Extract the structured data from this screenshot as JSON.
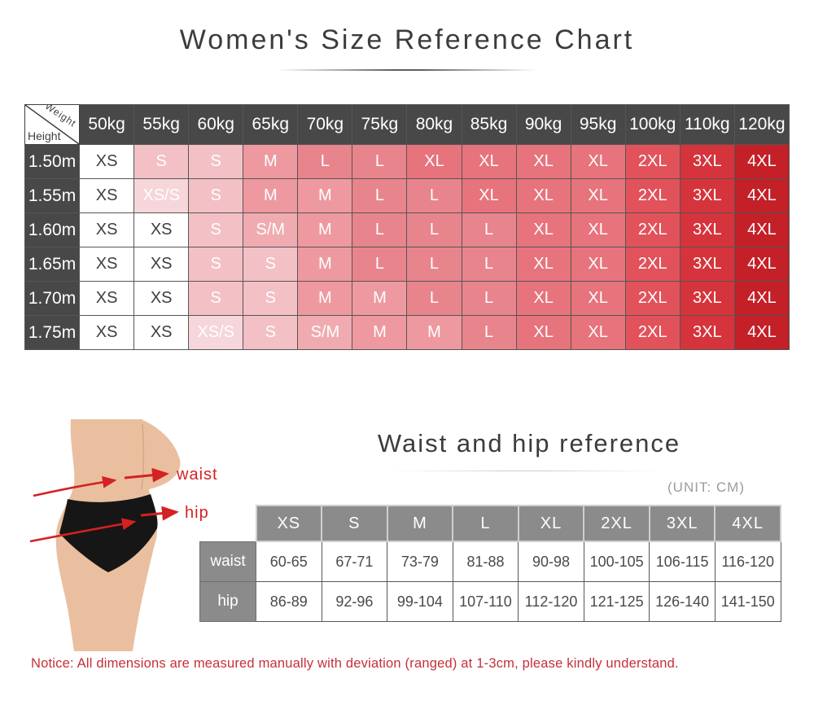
{
  "page": {
    "title": "Women's Size Reference Chart",
    "notice": "Notice: All dimensions are measured manually with deviation (ranged) at 1-3cm, please kindly understand."
  },
  "size_chart": {
    "corner": {
      "top_label": "Weight",
      "bottom_label": "Height"
    },
    "weight_headers": [
      "50kg",
      "55kg",
      "60kg",
      "65kg",
      "70kg",
      "75kg",
      "80kg",
      "85kg",
      "90kg",
      "95kg",
      "100kg",
      "110kg",
      "120kg"
    ],
    "rows": [
      {
        "height": "1.50m",
        "sizes": [
          "XS",
          "S",
          "S",
          "M",
          "L",
          "L",
          "XL",
          "XL",
          "XL",
          "XL",
          "2XL",
          "3XL",
          "4XL"
        ]
      },
      {
        "height": "1.55m",
        "sizes": [
          "XS",
          "XS/S",
          "S",
          "M",
          "M",
          "L",
          "L",
          "XL",
          "XL",
          "XL",
          "2XL",
          "3XL",
          "4XL"
        ]
      },
      {
        "height": "1.60m",
        "sizes": [
          "XS",
          "XS",
          "S",
          "S/M",
          "M",
          "L",
          "L",
          "L",
          "XL",
          "XL",
          "2XL",
          "3XL",
          "4XL"
        ]
      },
      {
        "height": "1.65m",
        "sizes": [
          "XS",
          "XS",
          "S",
          "S",
          "M",
          "L",
          "L",
          "L",
          "XL",
          "XL",
          "2XL",
          "3XL",
          "4XL"
        ]
      },
      {
        "height": "1.70m",
        "sizes": [
          "XS",
          "XS",
          "S",
          "S",
          "M",
          "M",
          "L",
          "L",
          "XL",
          "XL",
          "2XL",
          "3XL",
          "4XL"
        ]
      },
      {
        "height": "1.75m",
        "sizes": [
          "XS",
          "XS",
          "XS/S",
          "S",
          "S/M",
          "M",
          "M",
          "L",
          "XL",
          "XL",
          "2XL",
          "3XL",
          "4XL"
        ]
      }
    ],
    "size_colors": {
      "XS": "#ffffff",
      "XS/S": "#f6d6da",
      "S": "#f2c0c5",
      "S/M": "#f0abb1",
      "M": "#ee99a0",
      "L": "#e8848c",
      "XL": "#e7737c",
      "2XL": "#e2525b",
      "3XL": "#d6343c",
      "4XL": "#c32028"
    },
    "header_bg": "#484848"
  },
  "measure_section": {
    "title": "Waist and hip reference",
    "unit_label": "(UNIT: CM)",
    "figure": {
      "waist_label": "waist",
      "hip_label": "hip",
      "arrow_color": "#d42121"
    },
    "table": {
      "size_headers": [
        "XS",
        "S",
        "M",
        "L",
        "XL",
        "2XL",
        "3XL",
        "4XL"
      ],
      "rows": [
        {
          "label": "waist",
          "values": [
            "60-65",
            "67-71",
            "73-79",
            "81-88",
            "90-98",
            "100-105",
            "106-115",
            "116-120"
          ]
        },
        {
          "label": "hip",
          "values": [
            "86-89",
            "92-96",
            "99-104",
            "107-110",
            "112-120",
            "121-125",
            "126-140",
            "141-150"
          ]
        }
      ]
    }
  }
}
